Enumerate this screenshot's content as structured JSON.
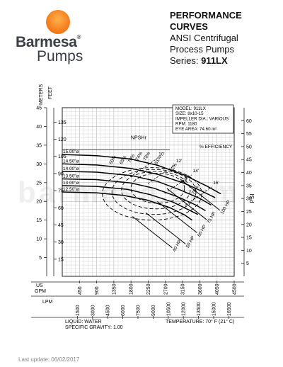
{
  "brand": {
    "name": "Barmesa",
    "sub": "Pumps",
    "reg": "®",
    "colors": {
      "sun": "#f57f1f",
      "text": "#3a3f46"
    }
  },
  "heading": {
    "title": "PERFORMANCE CURVES",
    "line1": "ANSI Centrifugal",
    "line2": "Process Pumps",
    "series_label": "Series: ",
    "series_value": "911LX"
  },
  "footer": {
    "updated": "Last update: 06/02/2017"
  },
  "watermark": "barmesa.com",
  "chart_data": {
    "type": "line",
    "title": "",
    "info": [
      "MODEL: 911LX",
      "SIZE: 8x10-15",
      "IMPELLER DIA.: VARIOUS",
      "RPM: 1180",
      "EYE AREA: 74.60 in²"
    ],
    "left_axis": {
      "meters_label": "METERS",
      "feet_label": "FEET",
      "meters_range": [
        0,
        45
      ],
      "meters_ticks": [
        5,
        10,
        15,
        20,
        25,
        30,
        35,
        40,
        45
      ],
      "feet_ticks": [
        15,
        30,
        45,
        60,
        75,
        90,
        105,
        120,
        135
      ]
    },
    "right_axis": {
      "label": "PSI",
      "range": [
        0,
        65
      ],
      "ticks": [
        5,
        10,
        15,
        20,
        25,
        30,
        35,
        40,
        45,
        50,
        55,
        60
      ]
    },
    "x_axis": {
      "us_label": "US GPM",
      "lpm_label": "LPM",
      "range_gpm": [
        0,
        4500
      ],
      "gpm_ticks": [
        450,
        900,
        1350,
        1800,
        2250,
        2700,
        3150,
        3600,
        4050,
        4500
      ],
      "lpm_ticks": [
        "1500",
        "3000",
        "4500",
        "6000",
        "7500",
        "9000",
        "10500",
        "12000",
        "13500",
        "15000",
        "16500"
      ]
    },
    "grid": true,
    "npshr_label": "NPSHr",
    "efficiency_label": "% EFFICIENCY",
    "impellers": [
      {
        "label": "15.00\"ø",
        "x_gpm": [
          0,
          900,
          1800,
          2500,
          3200,
          3800,
          4150
        ],
        "y_m": [
          32.5,
          32.2,
          31.3,
          29.6,
          27.0,
          24.0,
          22.0
        ]
      },
      {
        "label": "14.50\"ø",
        "x_gpm": [
          0,
          900,
          1800,
          2500,
          3200,
          3700,
          4000
        ],
        "y_m": [
          30.0,
          29.7,
          28.8,
          27.2,
          24.8,
          22.5,
          21.0
        ]
      },
      {
        "label": "14.00\"ø",
        "x_gpm": [
          0,
          900,
          1800,
          2500,
          3100,
          3600,
          3900
        ],
        "y_m": [
          28.0,
          27.8,
          26.9,
          25.3,
          23.0,
          20.8,
          19.0
        ]
      },
      {
        "label": "13.50\"ø",
        "x_gpm": [
          0,
          900,
          1800,
          2400,
          3000,
          3500,
          3750
        ],
        "y_m": [
          26.0,
          25.8,
          24.9,
          23.5,
          21.3,
          19.0,
          17.5
        ]
      },
      {
        "label": "13.00\"ø",
        "x_gpm": [
          0,
          900,
          1700,
          2300,
          2900,
          3300,
          3550
        ],
        "y_m": [
          24.2,
          24.0,
          23.2,
          21.8,
          19.8,
          17.8,
          16.5
        ]
      },
      {
        "label": "12.50\"ø",
        "x_gpm": [
          0,
          900,
          1600,
          2200,
          2800,
          3200,
          3400
        ],
        "y_m": [
          22.5,
          22.3,
          21.6,
          20.4,
          18.4,
          16.4,
          15.0
        ]
      }
    ],
    "efficiency_labels": [
      "60%",
      "65%",
      "70%",
      "74%",
      "78%",
      "81%",
      "82%",
      "81%",
      "78%"
    ],
    "efficiency_x_gpm": [
      1290,
      1560,
      1780,
      1980,
      2180,
      2480,
      2880,
      3200,
      3450
    ],
    "efficiency_y_m": [
      29.8,
      29.8,
      30.2,
      30.8,
      30.8,
      29.8,
      27.8,
      24.8,
      21.8
    ],
    "npsh_labels": [
      "10'",
      "12'",
      "14'",
      "16'"
    ],
    "npsh_x_gpm": [
      2520,
      2980,
      3420,
      3950
    ],
    "npsh_y_m": [
      32.2,
      30.4,
      27.8,
      24.6
    ],
    "hp_labels": [
      "40 HP",
      "50 HP",
      "60 HP",
      "75 HP",
      "100 HP"
    ],
    "hp_x_gpm": [
      2950,
      3300,
      3600,
      3850,
      4200
    ],
    "hp_y_m": [
      6.5,
      7.5,
      10.5,
      14.0,
      16.5
    ],
    "notes": {
      "liquid": "LIQUID: WATER",
      "gravity": "SPECIFIC GRAVITY: 1.00",
      "temperature": "TEMPERATURE: 70° F (21° C)"
    }
  }
}
